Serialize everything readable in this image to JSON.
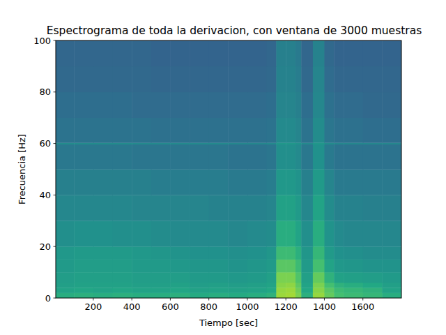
{
  "chart_data": {
    "type": "heatmap",
    "title": "Espectrograma de toda la derivacion, con ventana de 3000 muestras",
    "x_label": "Tiempo [sec]",
    "y_label": "Frecuencia [Hz]",
    "xlim": [
      5,
      1800
    ],
    "ylim": [
      0,
      100
    ],
    "xticks": [
      200,
      400,
      600,
      800,
      1000,
      1200,
      1400,
      1600
    ],
    "yticks": [
      0,
      20,
      40,
      60,
      80,
      100
    ],
    "clim": [
      0,
      100
    ],
    "x_edges": [
      5,
      100,
      200,
      300,
      400,
      500,
      600,
      700,
      800,
      900,
      1000,
      1100,
      1150,
      1200,
      1250,
      1280,
      1340,
      1400,
      1450,
      1500,
      1600,
      1700,
      1800
    ],
    "y_edges": [
      0,
      2,
      4,
      6,
      10,
      15,
      20,
      30,
      40,
      50,
      59.7,
      60.3,
      70,
      80,
      90,
      100
    ],
    "cells": [
      [
        62,
        63,
        62,
        63,
        62,
        62,
        63,
        61,
        62,
        61,
        62,
        64,
        85,
        86,
        80,
        63,
        84,
        76,
        70,
        68,
        66,
        62
      ],
      [
        58,
        59,
        58,
        59,
        58,
        58,
        59,
        57,
        58,
        57,
        58,
        60,
        84,
        85,
        78,
        60,
        82,
        74,
        68,
        66,
        64,
        58
      ],
      [
        56,
        57,
        57,
        57,
        56,
        56,
        57,
        55,
        56,
        55,
        56,
        58,
        82,
        83,
        75,
        58,
        80,
        70,
        64,
        62,
        60,
        56
      ],
      [
        55,
        56,
        56,
        56,
        55,
        55,
        55,
        54,
        54,
        53,
        54,
        56,
        80,
        80,
        72,
        56,
        76,
        64,
        57,
        56,
        55,
        54
      ],
      [
        54,
        55,
        55,
        55,
        54,
        54,
        53,
        52,
        52,
        51,
        52,
        54,
        74,
        74,
        68,
        54,
        70,
        58,
        53,
        52,
        51,
        51
      ],
      [
        53,
        54,
        54,
        54,
        53,
        52,
        51,
        50,
        50,
        49,
        50,
        52,
        68,
        68,
        63,
        52,
        66,
        54,
        50,
        49,
        48,
        48
      ],
      [
        49,
        50,
        50,
        49,
        49,
        48,
        47,
        47,
        47,
        46,
        47,
        48,
        62,
        62,
        58,
        49,
        62,
        51,
        47,
        46,
        46,
        46
      ],
      [
        46,
        46,
        46,
        46,
        45,
        45,
        45,
        45,
        44,
        44,
        44,
        45,
        57,
        57,
        54,
        46,
        58,
        48,
        44,
        44,
        43,
        43
      ],
      [
        43,
        43,
        43,
        43,
        43,
        42,
        42,
        42,
        42,
        41,
        41,
        42,
        53,
        53,
        51,
        43,
        54,
        45,
        41,
        41,
        41,
        41
      ],
      [
        40,
        40,
        40,
        40,
        39,
        39,
        39,
        39,
        39,
        38,
        38,
        39,
        49,
        49,
        47,
        40,
        50,
        41,
        38,
        38,
        38,
        38
      ],
      [
        48,
        48,
        48,
        48,
        47,
        47,
        47,
        47,
        47,
        46,
        46,
        47,
        53,
        53,
        51,
        47,
        53,
        48,
        46,
        46,
        46,
        46
      ],
      [
        38,
        38,
        38,
        38,
        38,
        37,
        37,
        37,
        37,
        37,
        37,
        38,
        47,
        47,
        45,
        38,
        48,
        39,
        37,
        37,
        36,
        36
      ],
      [
        36,
        36,
        36,
        36,
        35,
        35,
        35,
        35,
        35,
        35,
        35,
        36,
        45,
        45,
        43,
        36,
        46,
        37,
        35,
        35,
        34,
        34
      ],
      [
        34,
        34,
        34,
        34,
        34,
        33,
        33,
        33,
        33,
        33,
        33,
        34,
        44,
        44,
        42,
        34,
        45,
        35,
        33,
        33,
        33,
        33
      ],
      [
        33,
        33,
        33,
        33,
        33,
        32,
        32,
        32,
        32,
        32,
        32,
        33,
        43,
        43,
        41,
        33,
        44,
        34,
        32,
        32,
        32,
        32
      ]
    ]
  }
}
